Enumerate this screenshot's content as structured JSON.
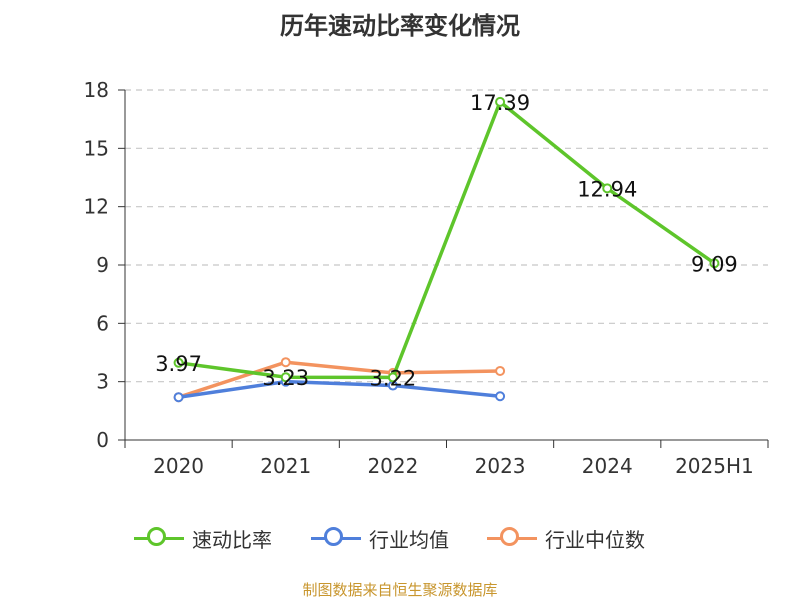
{
  "chart_data": {
    "type": "line",
    "title": "历年速动比率变化情况",
    "categories": [
      "2020",
      "2021",
      "2022",
      "2023",
      "2024",
      "2025H1"
    ],
    "ylim": [
      0,
      18
    ],
    "yticks": [
      "0",
      "3",
      "6",
      "9",
      "12",
      "15",
      "18"
    ],
    "grid": true,
    "legend_position": "bottom",
    "series": [
      {
        "name": "速动比率",
        "color": "#5ec52b",
        "values": [
          3.97,
          3.23,
          3.22,
          17.39,
          12.94,
          9.09
        ],
        "labels": [
          "3.97",
          "3.23",
          "3.22",
          "17.39",
          "12.94",
          "9.09"
        ]
      },
      {
        "name": "行业均值",
        "color": "#4f7fdb",
        "values": [
          2.2,
          3.0,
          2.8,
          2.25,
          null,
          null
        ]
      },
      {
        "name": "行业中位数",
        "color": "#f3935f",
        "values": [
          2.2,
          4.0,
          3.45,
          3.55,
          null,
          null
        ]
      }
    ]
  },
  "footer": {
    "source": "制图数据来自恒生聚源数据库"
  }
}
